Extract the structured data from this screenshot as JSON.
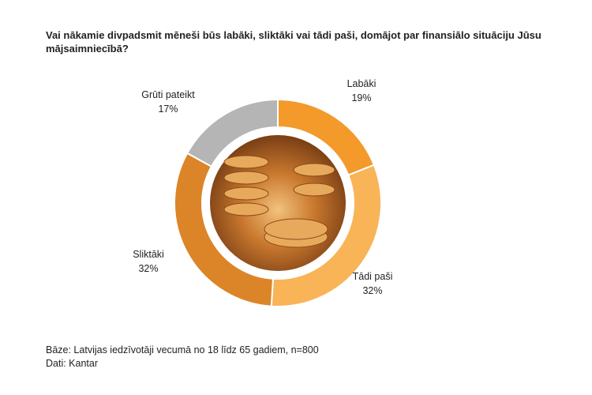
{
  "chart_data": {
    "type": "donut",
    "title": "Vai nākamie divpadsmit mēneši būs labāki, sliktāki vai tādi paši, domājot par finansiālo situāciju Jūsu mājsaimniecībā?",
    "categories": [
      "Labāki",
      "Tādi paši",
      "Sliktāki",
      "Grūti pateikt"
    ],
    "values": [
      19,
      32,
      32,
      17
    ],
    "value_labels": [
      "19%",
      "32%",
      "32%",
      "17%"
    ],
    "colors": [
      "#f39a2b",
      "#f8b457",
      "#dc8528",
      "#b5b5b5"
    ],
    "notes": [
      "Bāze: Latvijas iedzīvotāji vecumā no 18 līdz 65 gadiem, n=800",
      "Dati: Kantar"
    ]
  }
}
